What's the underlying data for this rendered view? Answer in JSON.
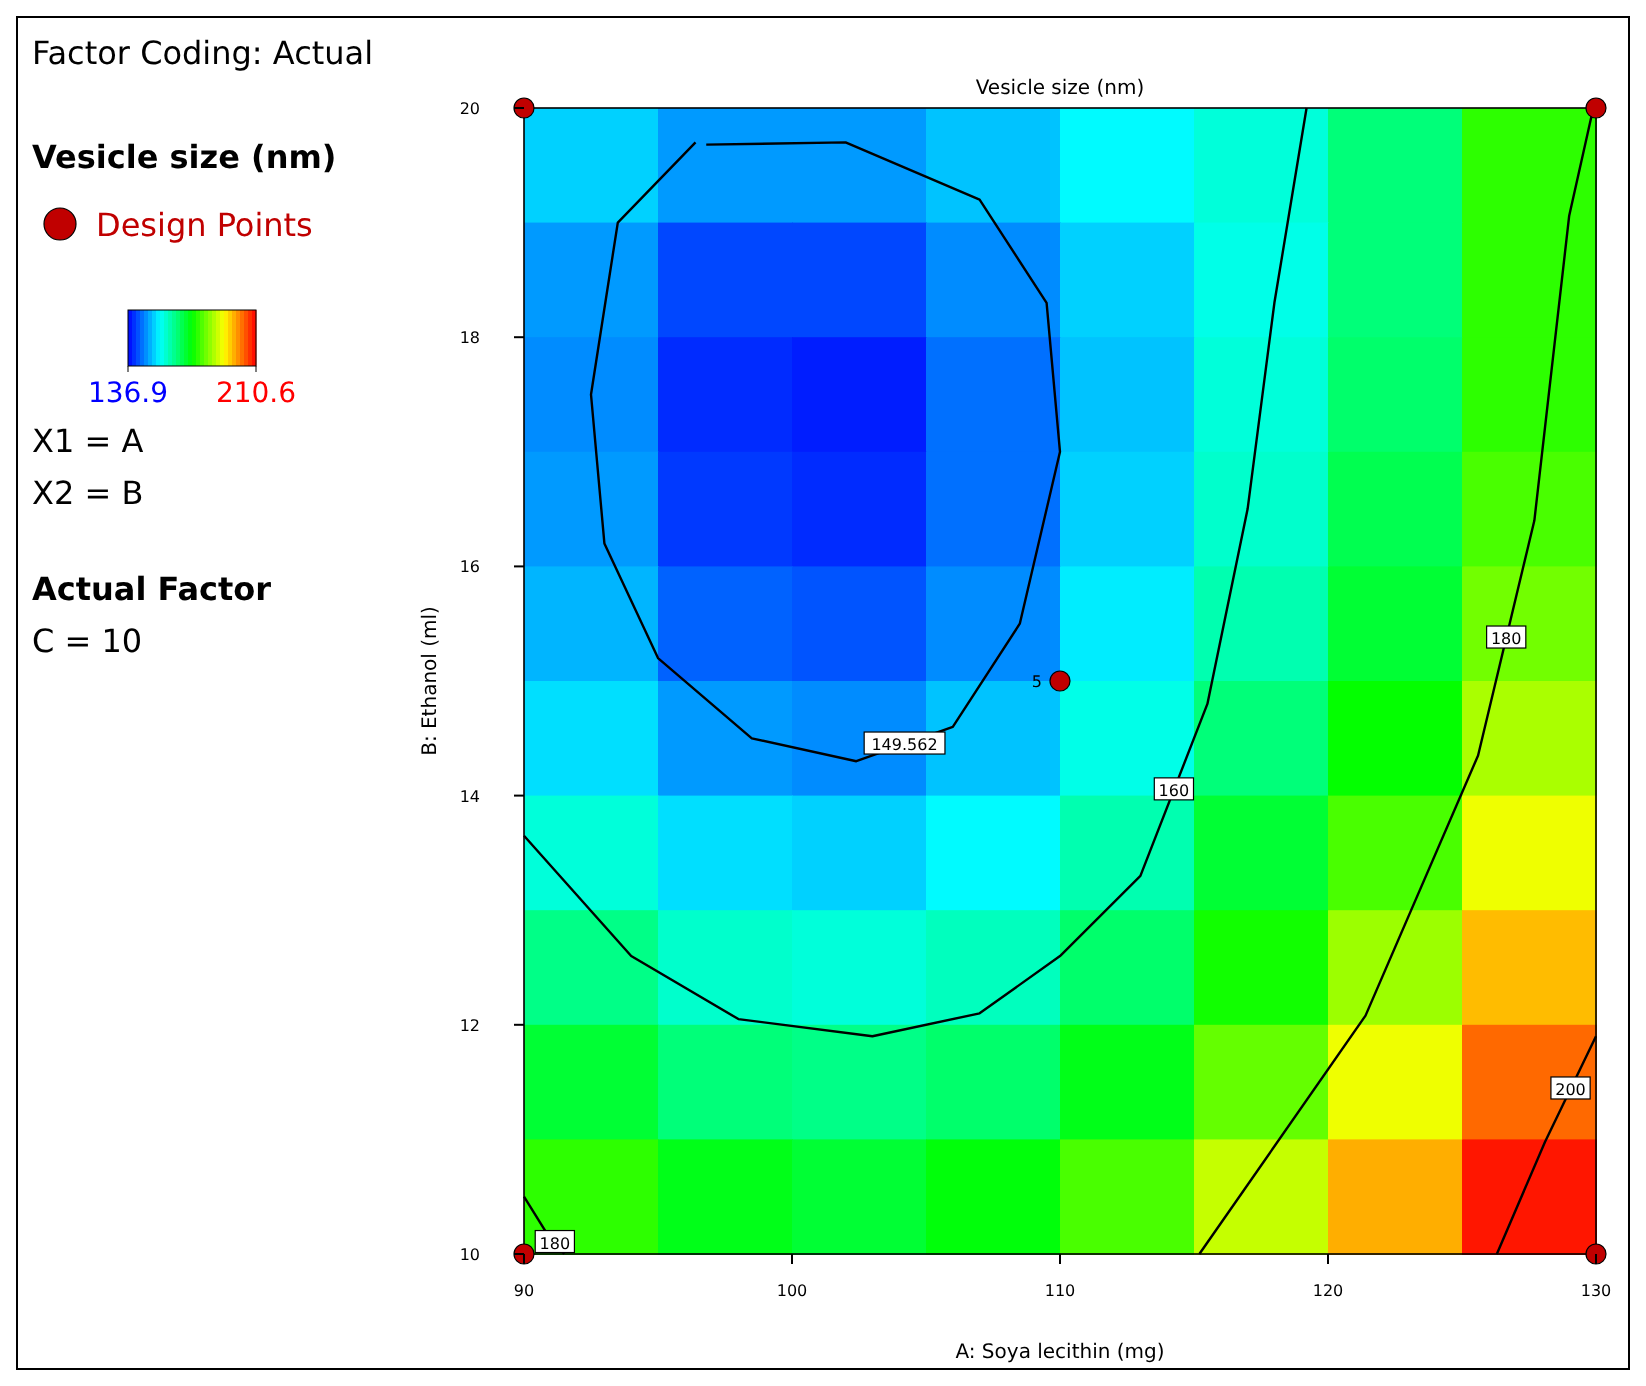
{
  "chart_data": {
    "type": "heatmap",
    "title": "Vesicle size (nm)",
    "xlabel": "A: Soya lecithin (mg)",
    "ylabel": "B: Ethanol (ml)",
    "legend_title": "Vesicle size (nm)",
    "legend": "left",
    "xlim": [
      90,
      130
    ],
    "ylim": [
      10,
      20
    ],
    "xticks": [
      90,
      100,
      110,
      120,
      130
    ],
    "yticks": [
      10,
      12,
      14,
      16,
      18,
      20
    ],
    "clim": [
      136.9,
      210.6
    ],
    "cticks": [
      136.9,
      210.6
    ],
    "cells": [
      [
        152,
        148,
        148,
        151,
        155,
        158,
        165,
        177
      ],
      [
        148,
        142,
        142,
        147,
        152,
        157,
        165,
        177
      ],
      [
        147,
        140,
        139,
        145,
        151,
        158,
        166,
        177
      ],
      [
        148,
        141,
        140,
        145,
        152,
        159,
        168,
        179
      ],
      [
        150,
        144,
        143,
        147,
        154,
        161,
        170,
        182
      ],
      [
        153,
        148,
        147,
        151,
        157,
        165,
        174,
        186
      ],
      [
        158,
        153,
        152,
        155,
        161,
        170,
        179,
        191
      ],
      [
        164,
        159,
        158,
        160,
        166,
        175,
        185,
        197
      ],
      [
        170,
        165,
        164,
        166,
        172,
        181,
        191,
        203
      ],
      [
        177,
        172,
        170,
        173,
        179,
        188,
        198,
        209
      ]
    ],
    "series": [
      {
        "type": "line",
        "name": "149.562",
        "color": "#000000",
        "x": [
          96.4,
          93.5,
          92.5,
          93,
          95,
          98.5,
          102.4,
          106,
          108.5,
          110,
          109.5,
          107,
          102,
          96.8
        ],
        "values": [
          19.7,
          19,
          17.5,
          16.2,
          15.2,
          14.5,
          14.3,
          14.6,
          15.5,
          17,
          18.3,
          19.2,
          19.7,
          19.68
        ]
      },
      {
        "type": "line",
        "name": "160",
        "color": "#000000",
        "x": [
          90,
          94,
          98,
          103,
          107,
          110,
          113,
          115.5,
          117,
          118,
          119.2
        ],
        "values": [
          13.65,
          12.6,
          12.05,
          11.9,
          12.1,
          12.6,
          13.3,
          14.8,
          16.5,
          18.3,
          20
        ]
      },
      {
        "type": "line",
        "name": "180",
        "color": "#000000",
        "x": [
          90,
          90.8,
          91.5,
          103,
          115.2,
          121.4,
          125.6,
          127.7,
          129,
          129.9
        ],
        "values": [
          10.5,
          10.2,
          10,
          null,
          10,
          12.08,
          14.35,
          16.4,
          19.06,
          20
        ]
      },
      {
        "type": "line",
        "name": "200",
        "color": "#000000",
        "x": [
          126.3,
          128.1,
          130
        ],
        "values": [
          10,
          10.98,
          11.9
        ]
      },
      {
        "type": "scatter",
        "name": "Design Points",
        "color": "#c00000",
        "marker": "circle",
        "x": [
          90,
          130,
          110,
          90,
          130
        ],
        "values": [
          20,
          20,
          15,
          10,
          10
        ]
      }
    ],
    "annotations": [
      "Factor Coding: Actual",
      "X1 = A",
      "X2 = B",
      "Actual Factor",
      "C = 10",
      {
        "text": "5",
        "x": 110,
        "y": 15
      }
    ]
  }
}
